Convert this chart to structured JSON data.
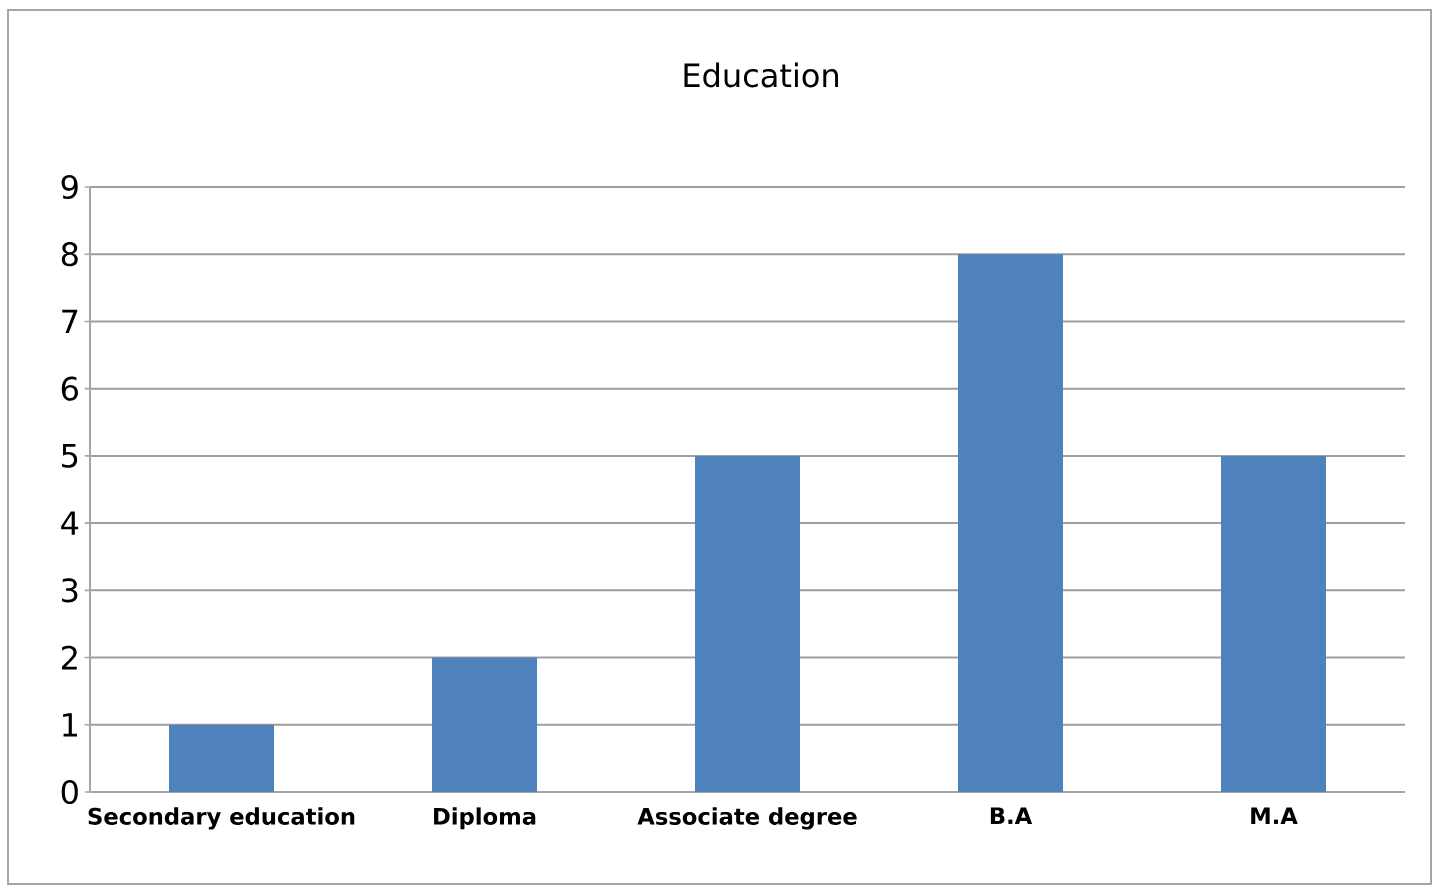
{
  "chart_data": {
    "type": "bar",
    "title": "Education",
    "categories": [
      "Secondary education",
      "Diploma",
      "Associate  degree",
      "B.A",
      "M.A"
    ],
    "values": [
      1,
      2,
      5,
      8,
      5
    ],
    "color": "#4f81bd",
    "ylim": [
      0,
      9
    ],
    "yticks": [
      0,
      1,
      2,
      3,
      4,
      5,
      6,
      7,
      8,
      9
    ],
    "grid": "y"
  }
}
